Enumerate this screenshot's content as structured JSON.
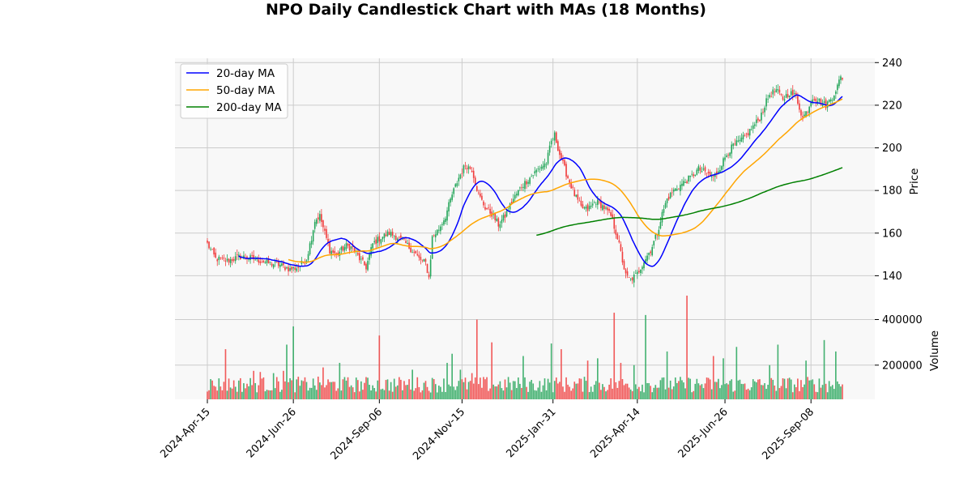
{
  "chart_data": {
    "type": "candlestick",
    "title": "NPO Daily Candlestick Chart with MAs (18 Months)",
    "ticker": "NPO",
    "date_range": [
      "2024-04-15",
      "2025-10-03"
    ],
    "xticks": [
      "2024-Apr-15",
      "2024-Jun-26",
      "2024-Sep-06",
      "2024-Nov-15",
      "2025-Jan-31",
      "2025-Apr-14",
      "2025-Jun-26",
      "2025-Sep-08"
    ],
    "price_panel": {
      "ylabel": "Price",
      "ylim": [
        128,
        242
      ],
      "yticks": [
        140,
        160,
        180,
        200,
        220,
        240
      ],
      "grid": true,
      "price_path": [
        [
          0,
          155
        ],
        [
          5,
          148
        ],
        [
          12,
          147
        ],
        [
          20,
          149
        ],
        [
          28,
          148
        ],
        [
          36,
          146
        ],
        [
          44,
          145
        ],
        [
          50,
          143
        ],
        [
          55,
          144
        ],
        [
          60,
          148
        ],
        [
          63,
          158
        ],
        [
          65,
          166
        ],
        [
          68,
          168
        ],
        [
          71,
          160
        ],
        [
          74,
          152
        ],
        [
          78,
          150
        ],
        [
          84,
          154
        ],
        [
          88,
          153
        ],
        [
          92,
          148
        ],
        [
          96,
          144
        ],
        [
          100,
          155
        ],
        [
          105,
          158
        ],
        [
          110,
          160
        ],
        [
          115,
          158
        ],
        [
          120,
          155
        ],
        [
          125,
          151
        ],
        [
          128,
          148
        ],
        [
          132,
          146
        ],
        [
          134,
          139
        ],
        [
          136,
          158
        ],
        [
          140,
          162
        ],
        [
          144,
          168
        ],
        [
          148,
          178
        ],
        [
          152,
          186
        ],
        [
          156,
          192
        ],
        [
          160,
          190
        ],
        [
          164,
          178
        ],
        [
          168,
          172
        ],
        [
          172,
          169
        ],
        [
          176,
          164
        ],
        [
          180,
          168
        ],
        [
          185,
          176
        ],
        [
          190,
          182
        ],
        [
          195,
          186
        ],
        [
          200,
          190
        ],
        [
          205,
          193
        ],
        [
          208,
          203
        ],
        [
          210,
          206
        ],
        [
          213,
          197
        ],
        [
          217,
          188
        ],
        [
          222,
          178
        ],
        [
          226,
          172
        ],
        [
          230,
          171
        ],
        [
          235,
          175
        ],
        [
          240,
          172
        ],
        [
          244,
          168
        ],
        [
          248,
          158
        ],
        [
          251,
          147
        ],
        [
          253,
          140
        ],
        [
          256,
          138
        ],
        [
          260,
          141
        ],
        [
          264,
          147
        ],
        [
          268,
          152
        ],
        [
          272,
          160
        ],
        [
          275,
          169
        ],
        [
          278,
          176
        ],
        [
          282,
          180
        ],
        [
          287,
          183
        ],
        [
          292,
          186
        ],
        [
          297,
          190
        ],
        [
          302,
          188
        ],
        [
          306,
          186
        ],
        [
          310,
          191
        ],
        [
          314,
          197
        ],
        [
          318,
          201
        ],
        [
          322,
          203
        ],
        [
          326,
          206
        ],
        [
          330,
          210
        ],
        [
          334,
          214
        ],
        [
          337,
          220
        ],
        [
          340,
          225
        ],
        [
          344,
          227
        ],
        [
          348,
          223
        ],
        [
          352,
          226
        ],
        [
          356,
          224
        ],
        [
          360,
          214
        ],
        [
          363,
          218
        ],
        [
          366,
          224
        ],
        [
          370,
          222
        ],
        [
          374,
          220
        ],
        [
          378,
          224
        ],
        [
          381,
          229
        ],
        [
          383,
          233
        ]
      ]
    },
    "volume_panel": {
      "ylabel": "Volume",
      "ylim": [
        50000,
        480000
      ],
      "yticks": [
        200000,
        400000
      ],
      "ytick_labels": [
        "200000",
        "400000"
      ],
      "grid": true,
      "spikes": [
        [
          11,
          270000
        ],
        [
          28,
          175000
        ],
        [
          32,
          170000
        ],
        [
          40,
          165000
        ],
        [
          46,
          175000
        ],
        [
          48,
          290000
        ],
        [
          52,
          370000
        ],
        [
          70,
          190000
        ],
        [
          80,
          210000
        ],
        [
          104,
          330000
        ],
        [
          124,
          180000
        ],
        [
          145,
          210000
        ],
        [
          148,
          250000
        ],
        [
          153,
          180000
        ],
        [
          160,
          165000
        ],
        [
          163,
          400000
        ],
        [
          172,
          300000
        ],
        [
          191,
          240000
        ],
        [
          208,
          295000
        ],
        [
          214,
          270000
        ],
        [
          230,
          220000
        ],
        [
          236,
          230000
        ],
        [
          246,
          430000
        ],
        [
          250,
          210000
        ],
        [
          258,
          200000
        ],
        [
          265,
          420000
        ],
        [
          278,
          260000
        ],
        [
          290,
          505000
        ],
        [
          306,
          240000
        ],
        [
          312,
          230000
        ],
        [
          320,
          280000
        ],
        [
          340,
          200000
        ],
        [
          345,
          290000
        ],
        [
          362,
          220000
        ],
        [
          373,
          310000
        ],
        [
          380,
          260000
        ]
      ]
    },
    "moving_averages": [
      {
        "name": "20-day MA",
        "color": "#0000ff",
        "window": 20
      },
      {
        "name": "50-day MA",
        "color": "#ffa500",
        "window": 50
      },
      {
        "name": "200-day MA",
        "color": "#008000",
        "window": 200
      }
    ],
    "up_color": "#26a65b",
    "down_color": "#f03e3e",
    "legend_position": "top-left"
  }
}
